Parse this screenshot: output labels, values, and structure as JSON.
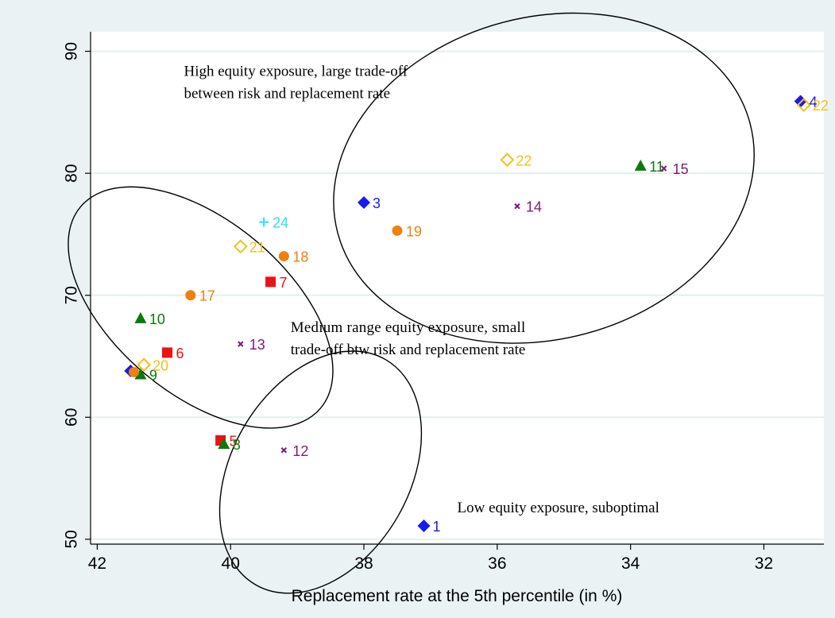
{
  "chart_data": {
    "type": "scatter",
    "xlabel": "Replacement rate at the 5th percentile (in %)",
    "ylabel": "",
    "x_reversed": true,
    "xlim": [
      31.1,
      42.1
    ],
    "ylim": [
      49.6,
      91.6
    ],
    "xticks": [
      42,
      40,
      38,
      36,
      34,
      32
    ],
    "yticks": [
      50,
      60,
      70,
      80,
      90
    ],
    "grid": "horizontal",
    "points": [
      {
        "label": "1",
        "x": 37.1,
        "y": 51.1,
        "marker": "diamond-filled",
        "color": "#1a1af0"
      },
      {
        "label": "3",
        "x": 38.0,
        "y": 77.6,
        "marker": "diamond-filled",
        "color": "#1a1af0"
      },
      {
        "label": "4",
        "x": 31.45,
        "y": 85.9,
        "marker": "diamond-filled",
        "color": "#1a1af0"
      },
      {
        "label": "",
        "x": 41.5,
        "y": 63.8,
        "marker": "diamond-filled",
        "color": "#1a1af0"
      },
      {
        "label": "5",
        "x": 40.15,
        "y": 58.1,
        "marker": "square",
        "color": "#ee1111"
      },
      {
        "label": "6",
        "x": 40.95,
        "y": 65.3,
        "marker": "square",
        "color": "#ee1111"
      },
      {
        "label": "7",
        "x": 39.4,
        "y": 71.1,
        "marker": "square",
        "color": "#ee1111"
      },
      {
        "label": "8",
        "x": 40.1,
        "y": 57.8,
        "marker": "triangle",
        "color": "#0b7a0b"
      },
      {
        "label": "9",
        "x": 41.35,
        "y": 63.5,
        "marker": "triangle",
        "color": "#0b7a0b"
      },
      {
        "label": "10",
        "x": 41.35,
        "y": 68.1,
        "marker": "triangle",
        "color": "#0b7a0b"
      },
      {
        "label": "11",
        "x": 33.85,
        "y": 80.6,
        "marker": "triangle",
        "color": "#0b7a0b"
      },
      {
        "label": "12",
        "x": 39.2,
        "y": 57.3,
        "marker": "x",
        "color": "#7a1a7a"
      },
      {
        "label": "13",
        "x": 39.85,
        "y": 66.0,
        "marker": "x",
        "color": "#7a1a7a"
      },
      {
        "label": "14",
        "x": 35.7,
        "y": 77.3,
        "marker": "x",
        "color": "#7a1a7a"
      },
      {
        "label": "15",
        "x": 33.5,
        "y": 80.4,
        "marker": "x",
        "color": "#7a1a7a"
      },
      {
        "label": "17",
        "x": 40.6,
        "y": 70.0,
        "marker": "circle",
        "color": "#f07f0e"
      },
      {
        "label": "18",
        "x": 39.2,
        "y": 73.2,
        "marker": "circle",
        "color": "#f07f0e"
      },
      {
        "label": "19",
        "x": 37.5,
        "y": 75.3,
        "marker": "circle",
        "color": "#f07f0e"
      },
      {
        "label": "",
        "x": 41.45,
        "y": 63.7,
        "marker": "circle",
        "color": "#f07f0e"
      },
      {
        "label": "20",
        "x": 41.3,
        "y": 64.3,
        "marker": "diamond-hollow",
        "color": "#f0c21a"
      },
      {
        "label": "21",
        "x": 39.85,
        "y": 74.0,
        "marker": "diamond-hollow",
        "color": "#f0c21a"
      },
      {
        "label": "22",
        "x": 35.85,
        "y": 81.1,
        "marker": "diamond-hollow",
        "color": "#f0c21a"
      },
      {
        "label": "22",
        "x": 31.4,
        "y": 85.6,
        "marker": "diamond-hollow",
        "color": "#f0c21a"
      },
      {
        "label": "24",
        "x": 39.5,
        "y": 76.0,
        "marker": "plus",
        "color": "#22e6f0"
      }
    ],
    "annotations": [
      {
        "lines": [
          "High equity exposure, large trade-off",
          "between risk and replacement rate"
        ],
        "x": 40.7,
        "y": 88.0,
        "justify": false
      },
      {
        "lines": [
          "Medium range equity exposure, small",
          "trade-off btw risk and replacement rate"
        ],
        "x": 39.1,
        "y": 67.0,
        "justify": true
      },
      {
        "lines": [
          "Low equity exposure, suboptimal"
        ],
        "x": 36.6,
        "y": 52.2,
        "justify": false
      }
    ],
    "ellipses": [
      {
        "cx": 35.3,
        "cy": 79.6,
        "rx": 3.2,
        "ry": 13.2,
        "rotate": -15
      },
      {
        "cx": 40.45,
        "cy": 69.0,
        "rx": 2.35,
        "ry": 7.1,
        "rotate": 40
      },
      {
        "cx": 38.65,
        "cy": 55.5,
        "rx": 1.95,
        "ry": 7.3,
        "rotate": -60
      }
    ]
  }
}
